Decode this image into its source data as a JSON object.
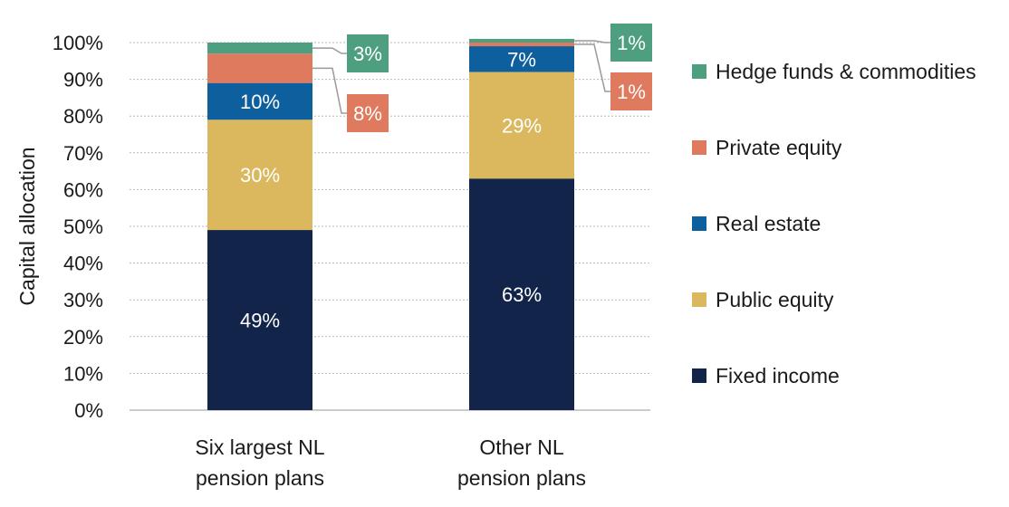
{
  "chart_data": {
    "type": "bar",
    "stacked": true,
    "categories": [
      [
        "Six largest NL",
        "pension plans"
      ],
      [
        "Other NL",
        "pension plans"
      ]
    ],
    "ylabel": "Capital allocation",
    "ylim": [
      0,
      100
    ],
    "yticks": [
      "0%",
      "10%",
      "20%",
      "30%",
      "40%",
      "50%",
      "60%",
      "70%",
      "80%",
      "90%",
      "100%"
    ],
    "grid": true,
    "legend_position": "right",
    "series": [
      {
        "name": "Fixed income",
        "color": "#12244a",
        "values": [
          49,
          63
        ],
        "labels": [
          "49%",
          "63%"
        ],
        "label_style": "inside"
      },
      {
        "name": "Public equity",
        "color": "#dbb85e",
        "values": [
          30,
          29
        ],
        "labels": [
          "30%",
          "29%"
        ],
        "label_style": "inside"
      },
      {
        "name": "Real estate",
        "color": "#0d5f9e",
        "values": [
          10,
          7
        ],
        "labels": [
          "10%",
          "7%"
        ],
        "label_style": "inside"
      },
      {
        "name": "Private equity",
        "color": "#df7a5f",
        "values": [
          8,
          1
        ],
        "labels": [
          "8%",
          "1%"
        ],
        "label_style": "callout"
      },
      {
        "name": "Hedge funds & commodities",
        "color": "#4e9e80",
        "values": [
          3,
          1
        ],
        "labels": [
          "3%",
          "1%"
        ],
        "label_style": "callout"
      }
    ],
    "legend_order": [
      "Hedge funds & commodities",
      "Private equity",
      "Real estate",
      "Public equity",
      "Fixed income"
    ]
  }
}
